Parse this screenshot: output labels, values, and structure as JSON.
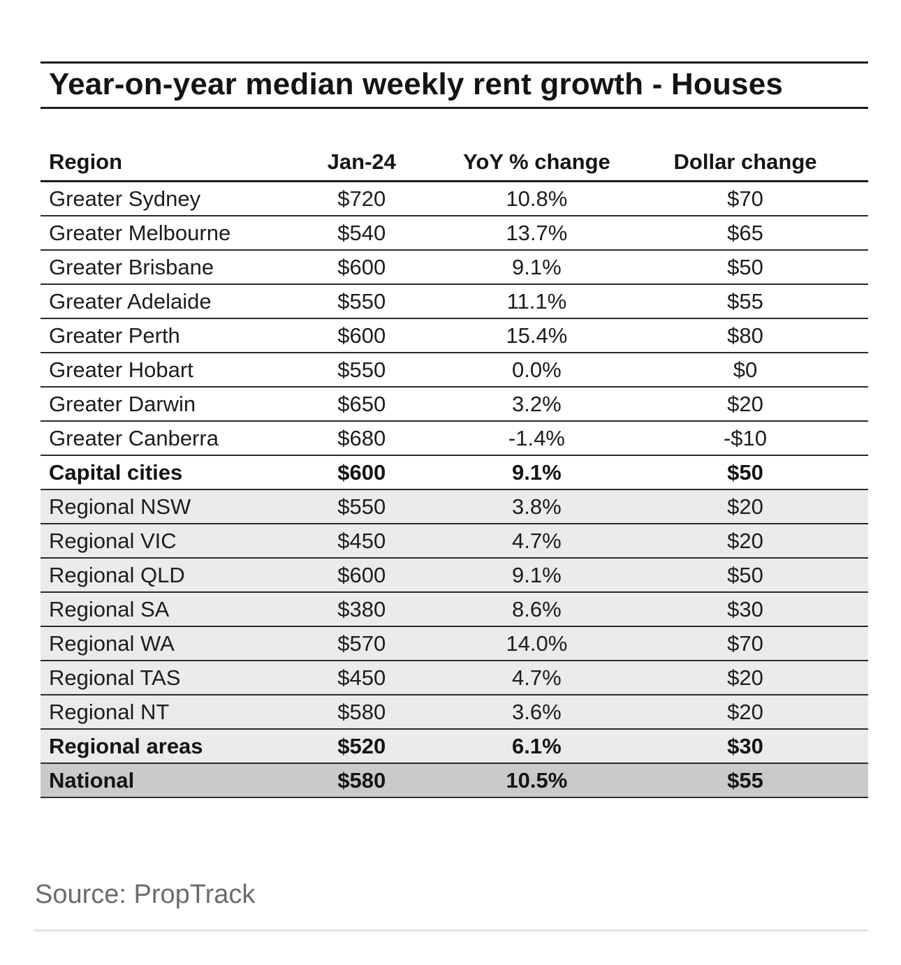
{
  "title": "Year-on-year median weekly rent growth - Houses",
  "source": "Source: PropTrack",
  "colors": {
    "rule_dark": "#1b1b1b",
    "row_border": "#2b2b2b",
    "row_shade_light": "#ebebe9",
    "row_shade_dark": "#cbcac8",
    "source_text": "#6c6c6e",
    "bottom_rule": "#e3e3e3"
  },
  "table": {
    "headers": [
      "Region",
      "Jan-24",
      "YoY % change",
      "Dollar change"
    ],
    "rows": [
      {
        "region": "Greater Sydney",
        "jan24": "$720",
        "yoy": "10.8%",
        "dollar": "$70"
      },
      {
        "region": "Greater Melbourne",
        "jan24": "$540",
        "yoy": "13.7%",
        "dollar": "$65"
      },
      {
        "region": "Greater Brisbane",
        "jan24": "$600",
        "yoy": "9.1%",
        "dollar": "$50"
      },
      {
        "region": "Greater Adelaide",
        "jan24": "$550",
        "yoy": "11.1%",
        "dollar": "$55"
      },
      {
        "region": "Greater Perth",
        "jan24": "$600",
        "yoy": "15.4%",
        "dollar": "$80"
      },
      {
        "region": "Greater Hobart",
        "jan24": "$550",
        "yoy": "0.0%",
        "dollar": "$0"
      },
      {
        "region": "Greater Darwin",
        "jan24": "$650",
        "yoy": "3.2%",
        "dollar": "$20"
      },
      {
        "region": "Greater Canberra",
        "jan24": "$680",
        "yoy": "-1.4%",
        "dollar": "-$10"
      },
      {
        "region": "Capital cities",
        "jan24": "$600",
        "yoy": "9.1%",
        "dollar": "$50"
      },
      {
        "region": "Regional NSW",
        "jan24": "$550",
        "yoy": "3.8%",
        "dollar": "$20"
      },
      {
        "region": "Regional VIC",
        "jan24": "$450",
        "yoy": "4.7%",
        "dollar": "$20"
      },
      {
        "region": "Regional QLD",
        "jan24": "$600",
        "yoy": "9.1%",
        "dollar": "$50"
      },
      {
        "region": "Regional SA",
        "jan24": "$380",
        "yoy": "8.6%",
        "dollar": "$30"
      },
      {
        "region": "Regional WA",
        "jan24": "$570",
        "yoy": "14.0%",
        "dollar": "$70"
      },
      {
        "region": "Regional TAS",
        "jan24": "$450",
        "yoy": "4.7%",
        "dollar": "$20"
      },
      {
        "region": "Regional NT",
        "jan24": "$580",
        "yoy": "3.6%",
        "dollar": "$20"
      },
      {
        "region": "Regional areas",
        "jan24": "$520",
        "yoy": "6.1%",
        "dollar": "$30"
      },
      {
        "region": "National",
        "jan24": "$580",
        "yoy": "10.5%",
        "dollar": "$55"
      }
    ]
  },
  "chart_data": {
    "type": "table",
    "title": "Year-on-year median weekly rent growth - Houses",
    "columns": [
      "Region",
      "Jan-24",
      "YoY % change",
      "Dollar change"
    ],
    "rows": [
      [
        "Greater Sydney",
        720,
        10.8,
        70
      ],
      [
        "Greater Melbourne",
        540,
        13.7,
        65
      ],
      [
        "Greater Brisbane",
        600,
        9.1,
        50
      ],
      [
        "Greater Adelaide",
        550,
        11.1,
        55
      ],
      [
        "Greater Perth",
        600,
        15.4,
        80
      ],
      [
        "Greater Hobart",
        550,
        0.0,
        0
      ],
      [
        "Greater Darwin",
        650,
        3.2,
        20
      ],
      [
        "Greater Canberra",
        680,
        -1.4,
        -10
      ],
      [
        "Capital cities",
        600,
        9.1,
        50
      ],
      [
        "Regional NSW",
        550,
        3.8,
        20
      ],
      [
        "Regional VIC",
        450,
        4.7,
        20
      ],
      [
        "Regional QLD",
        600,
        9.1,
        50
      ],
      [
        "Regional SA",
        380,
        8.6,
        30
      ],
      [
        "Regional WA",
        570,
        14.0,
        70
      ],
      [
        "Regional TAS",
        450,
        4.7,
        20
      ],
      [
        "Regional NT",
        580,
        3.6,
        20
      ],
      [
        "Regional areas",
        520,
        6.1,
        30
      ],
      [
        "National",
        580,
        10.5,
        55
      ]
    ],
    "summary_rows": [
      "Capital cities",
      "Regional areas",
      "National"
    ],
    "source": "Source: PropTrack"
  }
}
